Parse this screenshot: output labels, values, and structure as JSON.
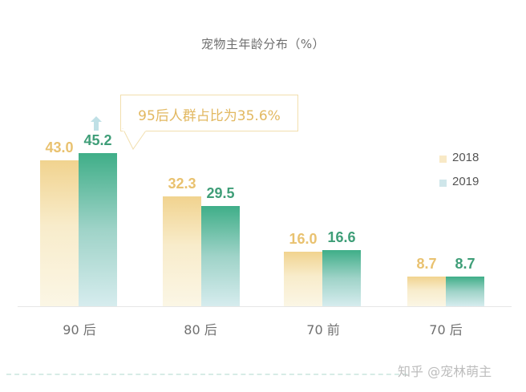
{
  "chart_data": {
    "type": "bar",
    "title": "宠物主年龄分布（%）",
    "xlabel": "",
    "ylabel": "",
    "categories": [
      "90后",
      "80后",
      "70前",
      "70后"
    ],
    "series": [
      {
        "name": "2018",
        "values": [
          43.0,
          32.3,
          16.0,
          8.7
        ],
        "color": "#f1d38f"
      },
      {
        "name": "2019",
        "values": [
          45.2,
          29.5,
          16.6,
          8.7
        ],
        "color": "#3fae88"
      }
    ],
    "ylim": [
      0,
      62
    ],
    "grid": false,
    "legend_position": "right",
    "annotations": [
      {
        "text": "95后人群占比为35.6%",
        "target": "90后 2019",
        "type": "callout"
      },
      {
        "text": "up-arrow",
        "target": "90后 2019",
        "type": "icon"
      }
    ]
  },
  "title": "宠物主年龄分布（%）",
  "callout": "95后人群占比为35.6%",
  "legend": [
    {
      "label": "2018",
      "color": "#f8e9c6"
    },
    {
      "label": "2019",
      "color": "#cfe6ea"
    }
  ],
  "bars": [
    {
      "category": "90后",
      "v2018": "43.0",
      "v2019": "45.2"
    },
    {
      "category": "80后",
      "v2018": "32.3",
      "v2019": "29.5"
    },
    {
      "category": "70前",
      "v2018": "16.0",
      "v2019": "16.6"
    },
    {
      "category": "70后",
      "v2018": "8.7",
      "v2019": "8.7"
    }
  ],
  "xlabels": [
    "90 后",
    "80 后",
    "70 前",
    "70 后"
  ],
  "watermark": "知乎 @宠林萌主"
}
